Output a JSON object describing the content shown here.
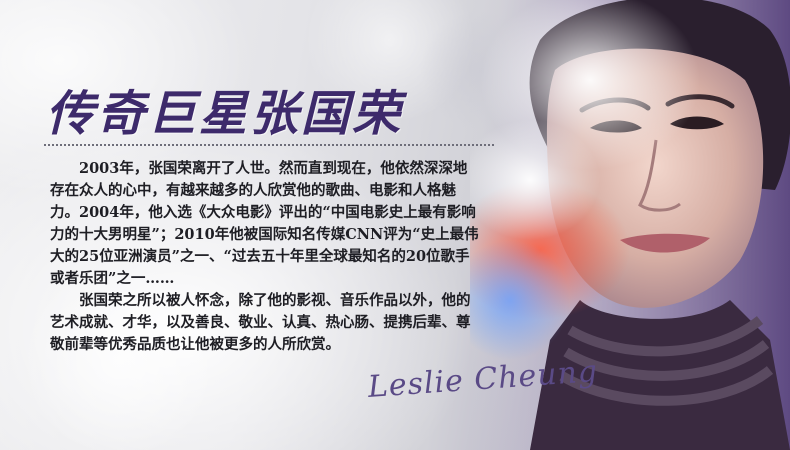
{
  "banner": {
    "title": "传奇巨星张国荣",
    "paragraphs": [
      "2003年，张国荣离开了人世。然而直到现在，他依然深深地存在众人的心中，有越来越多的人欣赏他的歌曲、电影和人格魅力。2004年，他入选《大众电影》评出的“中国电影史上最有影响力的十大男明星”；2010年他被国际知名传媒CNN评为“史上最伟大的25位亚洲演员”之一、“过去五十年里全球最知名的20位歌手或者乐团”之一……",
      "张国荣之所以被人怀念，除了他的影视、音乐作品以外，他的艺术成就、才华，以及善良、敬业、认真、热心肠、提携后辈、尊敬前辈等优秀品质也让他被更多的人所欣赏。"
    ],
    "signature": "Leslie Cheung",
    "colors": {
      "title": "#3d2a6b",
      "signature": "#5a4a86",
      "text": "#1e1e24"
    }
  }
}
